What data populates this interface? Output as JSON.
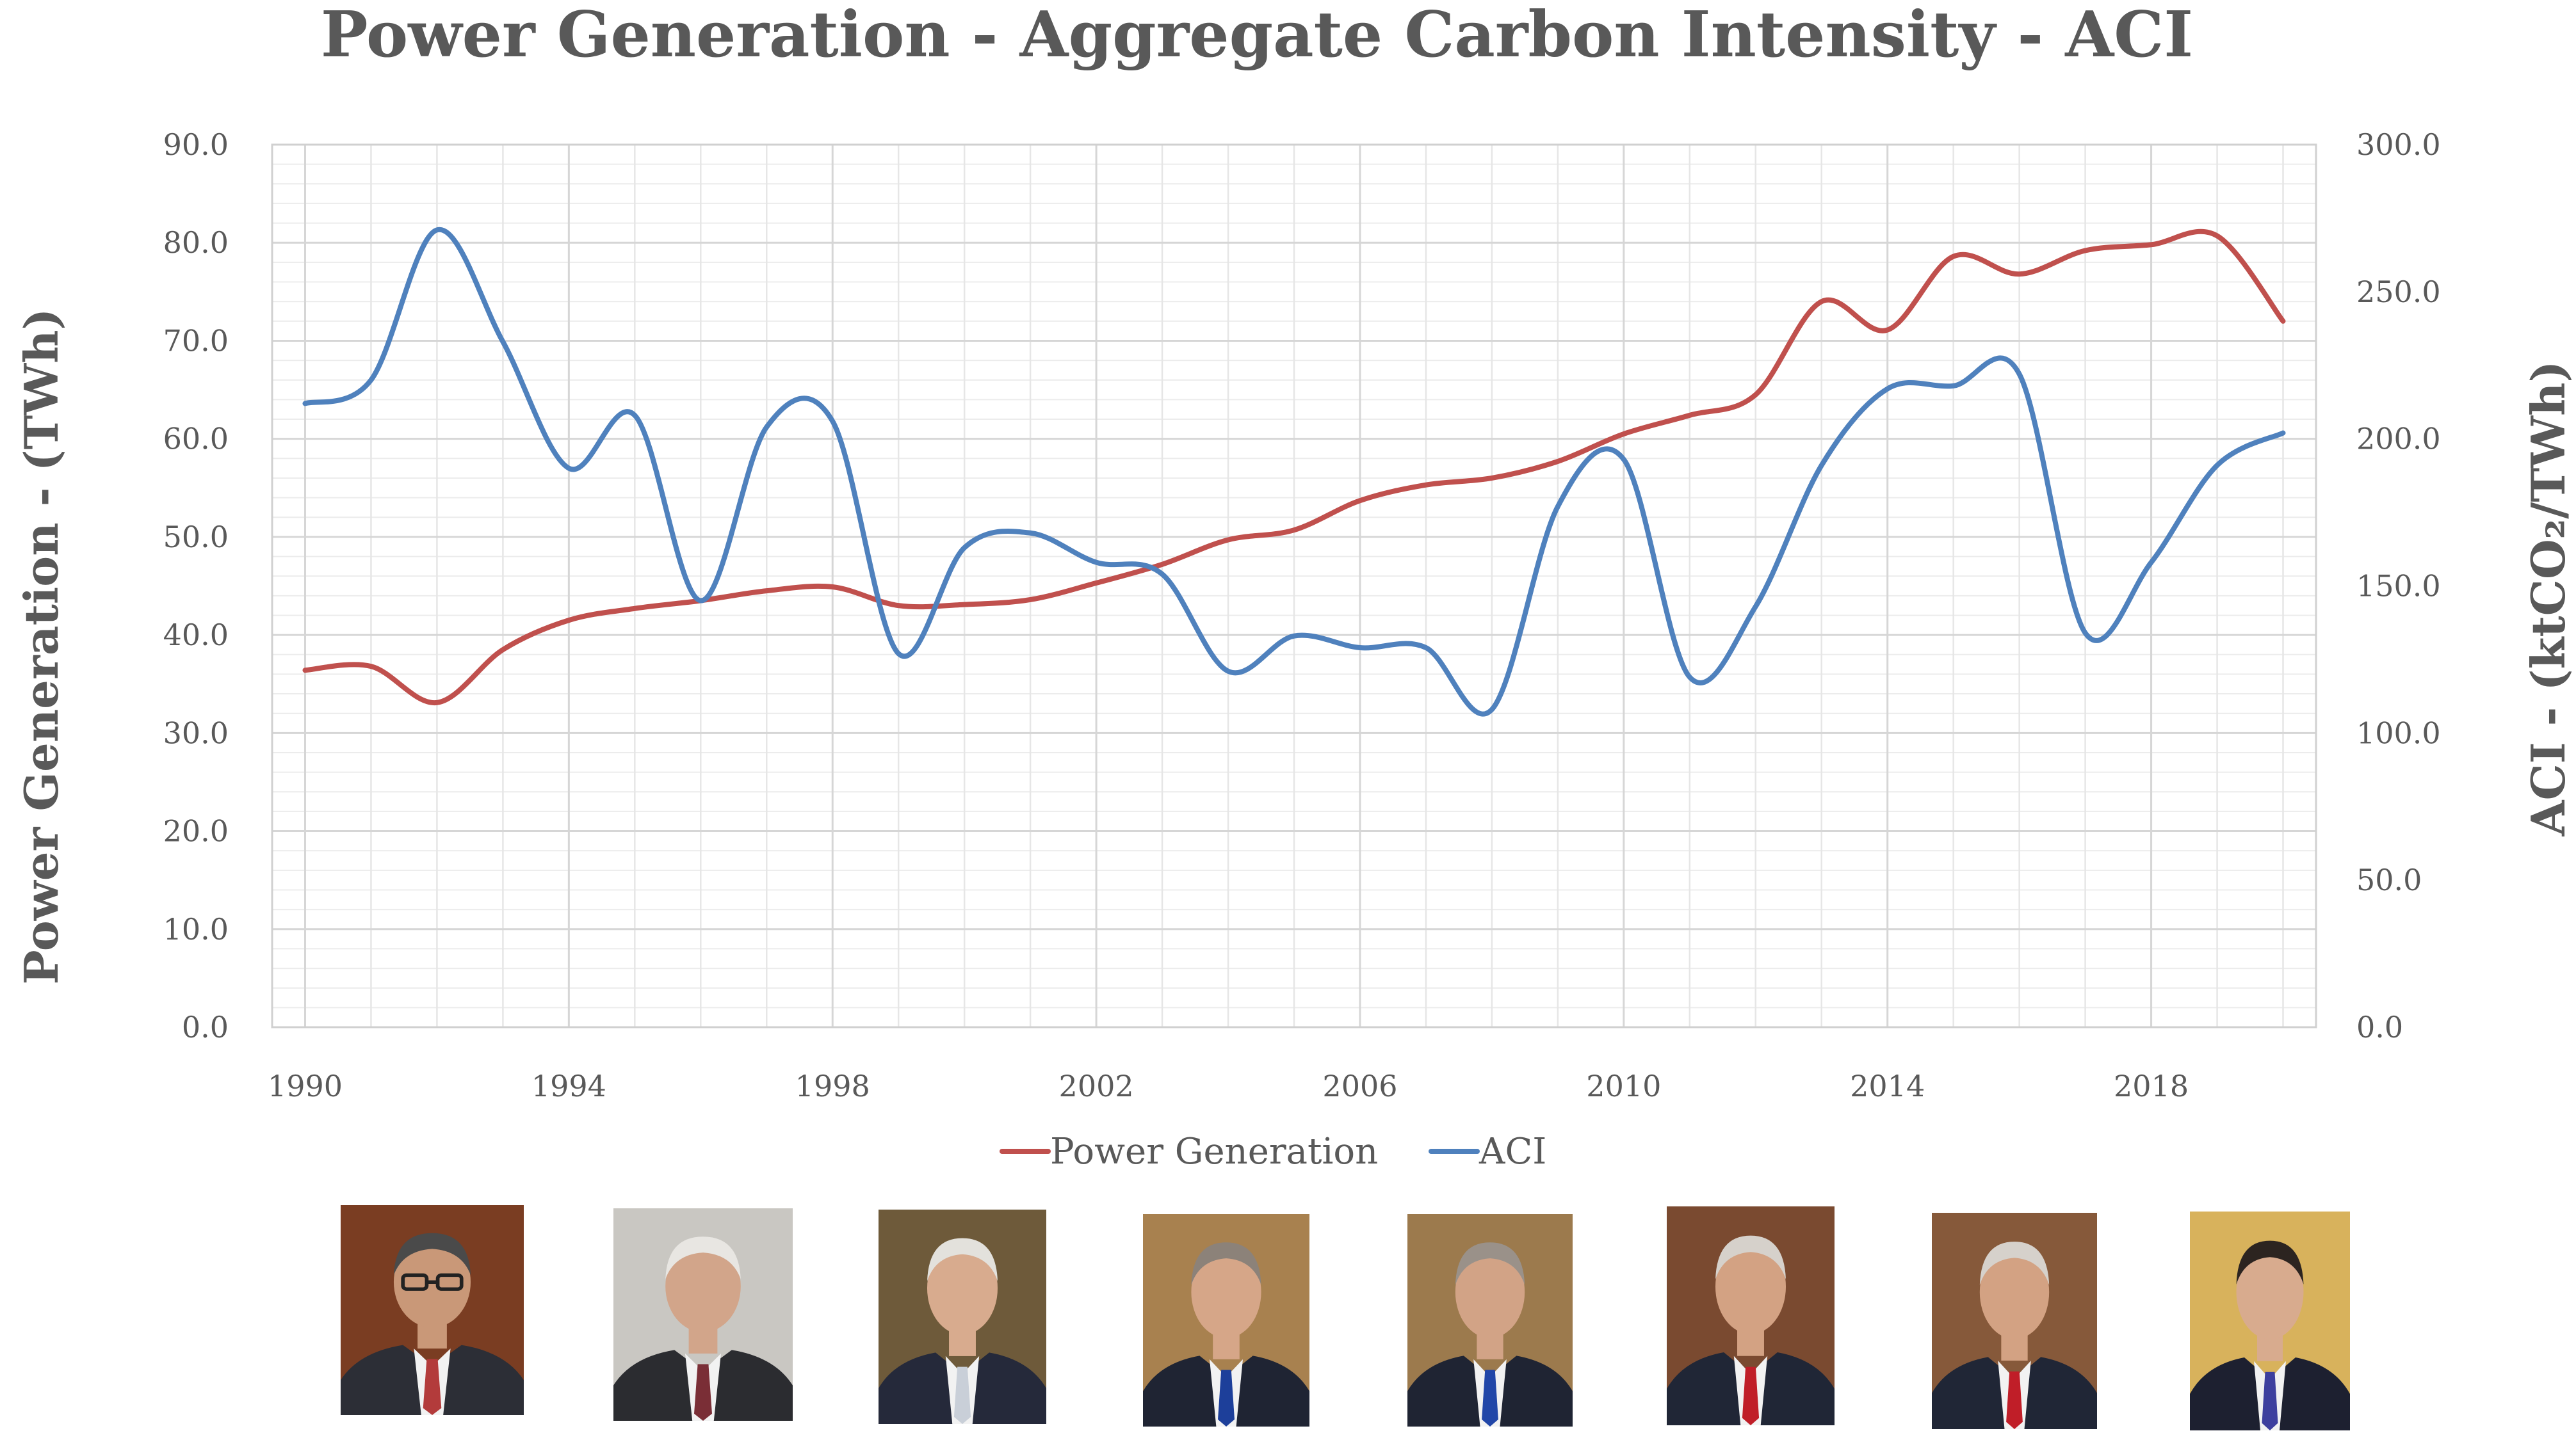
{
  "chart_data": {
    "type": "line",
    "title": "Power Generation - Aggregate Carbon Intensity - ACI",
    "ylabel_left": "Power Generation - (TWh)",
    "ylabel_right": "ACI - (ktCO₂/TWh)",
    "xlim": [
      1989.5,
      2020.5
    ],
    "ylim_left": [
      0,
      90
    ],
    "ylim_right": [
      0,
      300
    ],
    "x_ticks": [
      "1990",
      "1994",
      "1998",
      "2002",
      "2006",
      "2010",
      "2014",
      "2018"
    ],
    "x_tick_values": [
      1990,
      1994,
      1998,
      2002,
      2006,
      2010,
      2014,
      2018
    ],
    "y_ticks_left": [
      "0.0",
      "10.0",
      "20.0",
      "30.0",
      "40.0",
      "50.0",
      "60.0",
      "70.0",
      "80.0",
      "90.0"
    ],
    "y_ticks_right": [
      "0.0",
      "50.0",
      "100.0",
      "150.0",
      "200.0",
      "250.0",
      "300.0"
    ],
    "legend_position": "bottom-center",
    "x": [
      1990,
      1991,
      1992,
      1993,
      1994,
      1995,
      1996,
      1997,
      1998,
      1999,
      2000,
      2001,
      2002,
      2003,
      2004,
      2005,
      2006,
      2007,
      2008,
      2009,
      2010,
      2011,
      2012,
      2013,
      2014,
      2015,
      2016,
      2017,
      2018,
      2019,
      2020
    ],
    "series": [
      {
        "name": "Power Generation",
        "axis": "left",
        "color": "#c0504d",
        "values": [
          36.4,
          36.8,
          33.1,
          38.5,
          41.5,
          42.7,
          43.5,
          44.5,
          44.9,
          43.0,
          43.1,
          43.6,
          45.3,
          47.2,
          49.7,
          50.7,
          53.7,
          55.3,
          56.0,
          57.7,
          60.5,
          62.4,
          64.5,
          74.0,
          71.1,
          78.6,
          76.8,
          79.2,
          79.8,
          80.7,
          72.0
        ]
      },
      {
        "name": "ACI",
        "axis": "right",
        "color": "#4f81bd",
        "values": [
          212,
          220,
          271,
          233,
          190,
          208,
          145,
          204,
          206,
          127,
          163,
          168,
          158,
          154,
          121,
          133,
          129,
          129,
          108,
          177,
          193,
          119,
          143,
          191,
          217,
          218,
          222,
          134,
          158,
          191,
          202
        ]
      }
    ]
  },
  "portraits": [
    {
      "name": "portrait-1",
      "bg": "#7a3d22",
      "suit": "#2c2e36",
      "tie": "#b33b3b",
      "skin": "#c99878",
      "hair": "#4a4a4a",
      "glasses": true
    },
    {
      "name": "portrait-2",
      "bg": "#c9c7c2",
      "suit": "#2b2c30",
      "tie": "#7a2e36",
      "skin": "#d2a58a",
      "hair": "#e8e6e2",
      "glasses": false
    },
    {
      "name": "portrait-3",
      "bg": "#6e5a3a",
      "suit": "#25293a",
      "tie": "#c9cfd8",
      "skin": "#d8ab8e",
      "hair": "#e3e1dc",
      "glasses": false
    },
    {
      "name": "portrait-4",
      "bg": "#a8814f",
      "suit": "#1f2433",
      "tie": "#1d3f9a",
      "skin": "#d6a688",
      "hair": "#8c8279",
      "glasses": false
    },
    {
      "name": "portrait-5",
      "bg": "#9c7a4d",
      "suit": "#1f2433",
      "tie": "#2146a8",
      "skin": "#d2a386",
      "hair": "#9a9189",
      "glasses": false
    },
    {
      "name": "portrait-6",
      "bg": "#7a4a30",
      "suit": "#202636",
      "tie": "#c01e28",
      "skin": "#d3a283",
      "hair": "#d6d1cb",
      "glasses": false
    },
    {
      "name": "portrait-7",
      "bg": "#86593a",
      "suit": "#202636",
      "tie": "#c01e28",
      "skin": "#d3a283",
      "hair": "#d6d1cb",
      "glasses": false
    },
    {
      "name": "portrait-8",
      "bg": "#d8b25c",
      "suit": "#1d2030",
      "tie": "#3d3f9e",
      "skin": "#d8ab8e",
      "hair": "#2c2420",
      "glasses": false
    }
  ]
}
